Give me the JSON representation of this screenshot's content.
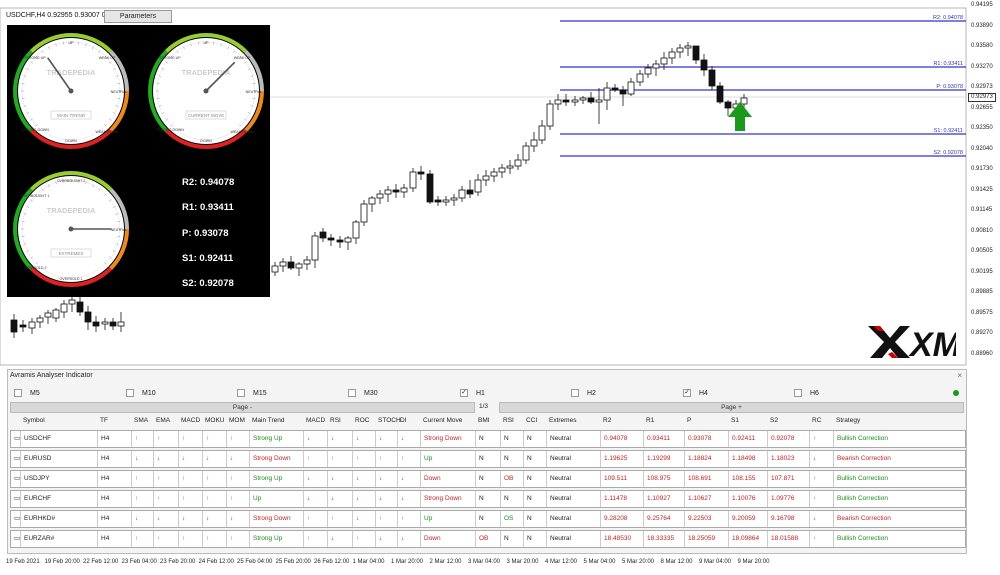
{
  "chart": {
    "symbol_title": "USDCHF,H4  0.92955 0.93007 0.929",
    "params_button": "Parameters",
    "current_price": "0.92973",
    "price_labels": [
      "0.94195",
      "0.93890",
      "0.93580",
      "0.93270",
      "0.92973",
      "0.92655",
      "0.92350",
      "0.92040",
      "0.91730",
      "0.91425",
      "0.91145",
      "0.90810",
      "0.90505",
      "0.90195",
      "0.89885",
      "0.89575",
      "0.89270",
      "0.88960"
    ],
    "levels": [
      {
        "label": "R2: 0.94078",
        "color": "#3333cc"
      },
      {
        "label": "R1: 0.93411",
        "color": "#3333cc"
      },
      {
        "label": "P: 0.93078",
        "color": "#3333cc"
      },
      {
        "label": "S1: 0.92411",
        "color": "#3333cc"
      },
      {
        "label": "S2: 0.92078",
        "color": "#3333cc"
      }
    ],
    "time_labels": [
      "19 Feb 2021",
      "19 Feb 20:00",
      "22 Feb 12:00",
      "23 Feb 04:00",
      "23 Feb 20:00",
      "24 Feb 12:00",
      "25 Feb 04:00",
      "25 Feb 20:00",
      "26 Feb 12:00",
      "1 Mar 04:00",
      "1 Mar 20:00",
      "2 Mar 12:00",
      "3 Mar 04:00",
      "3 Mar 20:00",
      "4 Mar 12:00",
      "5 Mar 04:00",
      "5 Mar 20:00",
      "8 Mar 12:00",
      "9 Mar 04:00",
      "9 Mar 20:00"
    ],
    "arrow_color": "#1a9a1a"
  },
  "gauges": [
    {
      "brand": "TRADEPEDIA",
      "caption": "MAIN TREND",
      "labels": [
        "UP",
        "WEAK UP",
        "NEUTRAL",
        "WEAK DOWN",
        "DOWN",
        "STRONG DOWN",
        "STRONG UP"
      ]
    },
    {
      "brand": "TRADEPEDIA",
      "caption": "CURRENT MOVE",
      "labels": [
        "UP",
        "WEAK UP",
        "NEUTRAL",
        "WEAK DOWN",
        "DOWN",
        "STRONG DOWN",
        "STRONG UP"
      ]
    },
    {
      "brand": "TRADEPEDIA",
      "caption": "EXTREMES",
      "labels": [
        "OVERBOUGHT 1",
        "OVERBOUGHT 2",
        "NEUTRAL",
        "OVERSOLD 1",
        "OVERSOLD 2"
      ]
    }
  ],
  "pivot_values": {
    "r2": "R2: 0.94078",
    "r1": "R1: 0.93411",
    "p": "P:  0.93078",
    "s1": "S1: 0.92411",
    "s2": "S2: 0.92078"
  },
  "logo": {
    "text": "XM"
  },
  "indicator": {
    "title": "Avramis Analyser Indicator",
    "close": "×",
    "timeframes": [
      {
        "label": "M5",
        "checked": false
      },
      {
        "label": "M10",
        "checked": false
      },
      {
        "label": "M15",
        "checked": false
      },
      {
        "label": "M30",
        "checked": false
      },
      {
        "label": "H1",
        "checked": true
      },
      {
        "label": "H2",
        "checked": false
      },
      {
        "label": "H4",
        "checked": true
      },
      {
        "label": "H6",
        "checked": false
      }
    ],
    "page_minus": "Page -",
    "page_num": "1/3",
    "page_plus": "Page +",
    "headers": [
      "Symbol",
      "TF",
      "SMA",
      "EMA",
      "MACD",
      "MOKU",
      "MOM",
      "Main Trend",
      "MACD",
      "RSI",
      "ROC",
      "STOCH",
      "DI",
      "Current Move",
      "BMI",
      "RSI",
      "CCI",
      "Extremes",
      "R2",
      "R1",
      "P",
      "S1",
      "S2",
      "RC",
      "Strategy"
    ],
    "rows": [
      {
        "symbol": "USDCHF",
        "tf": "H4",
        "a": [
          "u",
          "u",
          "u",
          "u",
          "u",
          "Strong Up",
          "d",
          "d",
          "d",
          "d",
          "d",
          "Strong Down",
          "N",
          "N",
          "N",
          "Neutral",
          "0.94078",
          "0.93411",
          "0.93078",
          "0.92411",
          "0.92078",
          "u",
          "Bullish Correction"
        ]
      },
      {
        "symbol": "EURUSD",
        "tf": "H4",
        "a": [
          "d",
          "d",
          "d",
          "d",
          "d",
          "Strong Down",
          "u",
          "u",
          "u",
          "u",
          "u",
          "Up",
          "N",
          "N",
          "N",
          "Neutral",
          "1.19625",
          "1.19299",
          "1.18824",
          "1.18498",
          "1.18023",
          "d",
          "Bearish Correction"
        ]
      },
      {
        "symbol": "USDJPY",
        "tf": "H4",
        "a": [
          "u",
          "u",
          "u",
          "u",
          "u",
          "Strong Up",
          "d",
          "d",
          "d",
          "d",
          "d",
          "Down",
          "N",
          "OB",
          "N",
          "Neutral",
          "109.511",
          "108.975",
          "108.691",
          "108.155",
          "107.871",
          "u",
          "Bullish Correction"
        ]
      },
      {
        "symbol": "EURCHF",
        "tf": "H4",
        "a": [
          "u",
          "u",
          "u",
          "u",
          "u",
          "Up",
          "d",
          "d",
          "d",
          "d",
          "d",
          "Strong Down",
          "N",
          "N",
          "N",
          "Neutral",
          "1.11478",
          "1.10927",
          "1.10627",
          "1.10076",
          "1.09776",
          "u",
          "Bullish Correction"
        ]
      },
      {
        "symbol": "EURHKD#",
        "tf": "H4",
        "a": [
          "d",
          "d",
          "d",
          "d",
          "d",
          "Strong Down",
          "u",
          "u",
          "d",
          "u",
          "u",
          "Up",
          "N",
          "OS",
          "N",
          "Neutral",
          "9.28208",
          "9.25764",
          "9.22503",
          "9.20059",
          "9.16798",
          "d",
          "Bearish Correction"
        ]
      },
      {
        "symbol": "EURZAR#",
        "tf": "H4",
        "a": [
          "u",
          "u",
          "u",
          "u",
          "u",
          "Strong Up",
          "u",
          "d",
          "u",
          "d",
          "d",
          "Down",
          "OB",
          "N",
          "N",
          "Neutral",
          "18.48530",
          "18.33335",
          "18.25059",
          "18.09864",
          "18.01588",
          "u",
          "Bullish Correction"
        ]
      }
    ]
  }
}
